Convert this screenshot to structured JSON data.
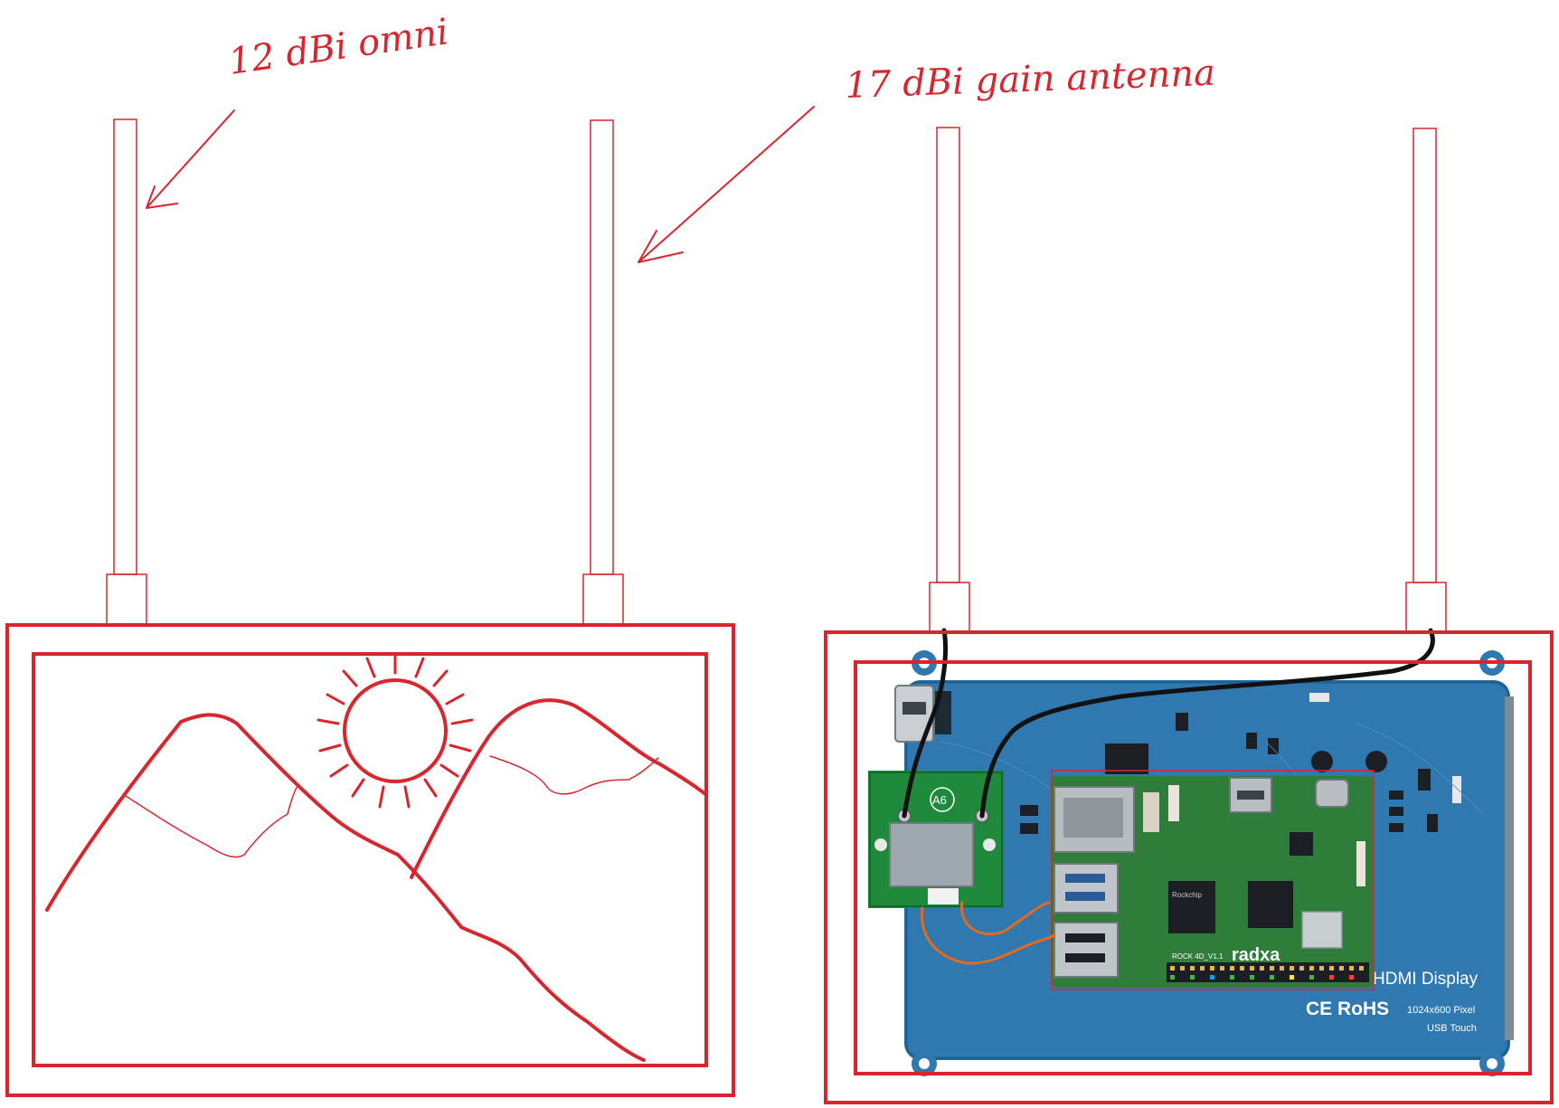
{
  "annotations": {
    "left_antenna": "12 dBi omni",
    "right_antenna": "17 dBi gain antenna"
  },
  "board": {
    "wifi_module_label": "A6",
    "sbc_brand": "radxa",
    "sbc_model": "ROCK 4D_V1.1",
    "chip_brand": "Rockchip",
    "display_label": "HDMI Display",
    "cert_marks": "CE RoHS",
    "resolution": "1024x600 Pixel",
    "touch": "USB Touch"
  },
  "colors": {
    "outline": "#d9262e",
    "display_pcb": "#2f78b0",
    "sbc_pcb": "#2e7d3a",
    "wifi_pcb": "#1f8a3c",
    "cable_black": "#111111",
    "cable_orange": "#e36a1f"
  }
}
